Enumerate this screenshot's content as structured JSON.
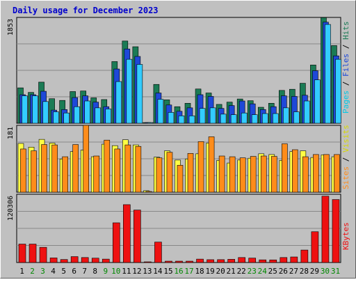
{
  "chart_data": {
    "type": "bar",
    "title": "Daily usage for December 2023",
    "categories": [
      "1",
      "2",
      "3",
      "4",
      "5",
      "6",
      "7",
      "8",
      "9",
      "10",
      "11",
      "12",
      "13",
      "14",
      "15",
      "16",
      "17",
      "18",
      "19",
      "20",
      "21",
      "22",
      "23",
      "24",
      "25",
      "26",
      "27",
      "28",
      "29",
      "30",
      "31"
    ],
    "weekend_days": [
      "2",
      "3",
      "9",
      "10",
      "16",
      "17",
      "23",
      "24",
      "30",
      "31"
    ],
    "colors": {
      "background": "#c0c0c0",
      "border": "#000000",
      "title": "#0000cc",
      "gridline": "#888888",
      "hits": "#1b7b55",
      "files": "#1e48d8",
      "pages": "#33ccff",
      "visits": "#ffff44",
      "sites": "#ff8c1a",
      "kbytes": "#ee1111",
      "weekday_label": "#000000",
      "weekend_label": "#008800"
    },
    "panels": [
      {
        "id": "traffic",
        "ymax_label": "1853",
        "ymax": 1853,
        "legend": [
          {
            "text": "Pages",
            "color": "#00c8e6"
          },
          {
            "text": "Files",
            "color": "#1e48d8"
          },
          {
            "text": "Hits",
            "color": "#1b7b55"
          }
        ],
        "series": [
          {
            "name": "Hits",
            "values": [
              620,
              540,
              720,
              430,
              400,
              555,
              565,
              445,
              415,
              1080,
              1440,
              1340,
              10,
              680,
              410,
              290,
              350,
              600,
              530,
              330,
              370,
              425,
              395,
              280,
              350,
              575,
              595,
              700,
              1020,
              1850,
              1360
            ]
          },
          {
            "name": "Files",
            "values": [
              500,
              500,
              560,
              230,
              240,
              450,
              480,
              370,
              290,
              950,
              1300,
              1170,
              5,
              530,
              320,
              210,
              270,
              500,
              470,
              260,
              310,
              390,
              340,
              240,
              290,
              480,
              470,
              490,
              920,
              1770,
              1180
            ]
          },
          {
            "name": "Pages",
            "values": [
              480,
              480,
              380,
              200,
              180,
              290,
              390,
              270,
              250,
              730,
              1120,
              1030,
              5,
              420,
              190,
              130,
              130,
              260,
              270,
              160,
              150,
              180,
              150,
              170,
              170,
              270,
              200,
              390,
              760,
              1730,
              1120
            ]
          }
        ]
      },
      {
        "id": "visitors",
        "ymax_label": "181",
        "ymax": 181,
        "legend": [
          {
            "text": "Sites",
            "color": "#ff8c1a"
          },
          {
            "text": "Visits",
            "color": "#d8d800"
          }
        ],
        "series": [
          {
            "name": "Visits",
            "values": [
              132,
              122,
              143,
              133,
              90,
              110,
              114,
              96,
              130,
              126,
              142,
              128,
              4,
              95,
              112,
              87,
              90,
              104,
              133,
              86,
              79,
              87,
              92,
              104,
              102,
              86,
              110,
              112,
              94,
              101,
              96
            ]
          },
          {
            "name": "Sites",
            "values": [
              117,
              112,
              129,
              128,
              96,
              129,
              181,
              98,
              141,
              117,
              128,
              124,
              2,
              93,
              108,
              73,
              105,
              137,
              150,
              98,
              96,
              93,
              97,
              98,
              97,
              131,
              115,
              96,
              102,
              102,
              102
            ]
          }
        ]
      },
      {
        "id": "kbytes",
        "ymax_label": "120306",
        "ymax": 120306,
        "legend": [
          {
            "text": "KBytes",
            "color": "#ee1111"
          }
        ],
        "series": [
          {
            "name": "KBytes",
            "values": [
              32500,
              32500,
              26800,
              8100,
              5300,
              10400,
              8800,
              7700,
              6000,
              70000,
              102000,
              92500,
              1200,
              36000,
              2400,
              2400,
              2400,
              6000,
              5000,
              5100,
              5700,
              8800,
              7800,
              4700,
              4600,
              8800,
              9800,
              22000,
              54300,
              117000,
              111000
            ]
          }
        ]
      }
    ]
  }
}
